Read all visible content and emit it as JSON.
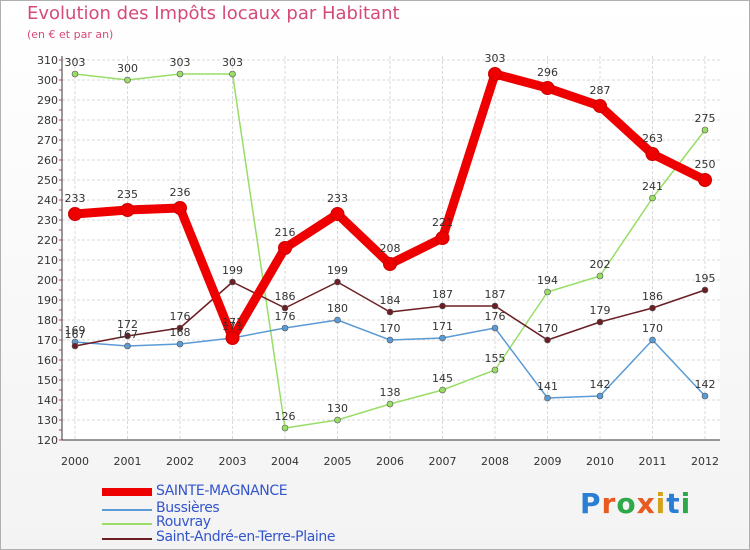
{
  "title": "Evolution des Impôts locaux par Habitant",
  "subtitle": "(en € et par an)",
  "logo": {
    "text": "Proxiti",
    "letters": [
      "P",
      "r",
      "o",
      "x",
      "i",
      "t",
      "i"
    ],
    "letter_colors": [
      "#2a7fd4",
      "#e85a1f",
      "#2ea84a",
      "#e85a1f",
      "#d4a21a",
      "#2a7fd4",
      "#2ea84a"
    ]
  },
  "chart_data": {
    "type": "line",
    "title": "Evolution des Impôts locaux par Habitant",
    "xlabel": "",
    "ylabel": "(en € et par an)",
    "categories": [
      "2000",
      "2001",
      "2002",
      "2003",
      "2004",
      "2005",
      "2006",
      "2007",
      "2008",
      "2009",
      "2010",
      "2011",
      "2012"
    ],
    "ylim": [
      120,
      310
    ],
    "yticks": [
      120,
      130,
      140,
      150,
      160,
      170,
      180,
      190,
      200,
      210,
      220,
      230,
      240,
      250,
      260,
      270,
      280,
      290,
      300,
      310
    ],
    "grid": true,
    "legend_position": "bottom-left",
    "series": [
      {
        "name": "SAINTE-MAGNANCE",
        "color": "#ee0000",
        "emphasis": true,
        "values": [
          233,
          235,
          236,
          171,
          216,
          233,
          208,
          221,
          303,
          296,
          287,
          263,
          250
        ],
        "labels": [
          "233",
          "235",
          "236",
          "171",
          "216",
          "233",
          "208",
          "221",
          "303",
          "296",
          "287",
          "263",
          "250"
        ]
      },
      {
        "name": "Bussières",
        "color": "#5b9bd5",
        "emphasis": false,
        "values": [
          169,
          167,
          168,
          171,
          176,
          180,
          170,
          171,
          176,
          141,
          142,
          170,
          142
        ],
        "labels": [
          "169",
          "167",
          "168",
          "171",
          "176",
          "180",
          "170",
          "171",
          "176",
          "141",
          "142",
          "170",
          "142"
        ]
      },
      {
        "name": "Rouvray",
        "color": "#99dd66",
        "emphasis": false,
        "values": [
          303,
          300,
          303,
          303,
          126,
          130,
          138,
          145,
          155,
          194,
          202,
          241,
          275
        ],
        "labels": [
          "303",
          "300",
          "303",
          "303",
          "126",
          "130",
          "138",
          "145",
          "155",
          "194",
          "202",
          "241",
          "275"
        ]
      },
      {
        "name": "Saint-André-en-Terre-Plaine",
        "color": "#6b1f24",
        "emphasis": false,
        "values": [
          167,
          172,
          176,
          199,
          186,
          199,
          184,
          187,
          187,
          170,
          179,
          186,
          195
        ],
        "labels": [
          "167",
          "172",
          "176",
          "199",
          "186",
          "199",
          "184",
          "187",
          "187",
          "170",
          "179",
          "186",
          "195"
        ]
      }
    ]
  }
}
